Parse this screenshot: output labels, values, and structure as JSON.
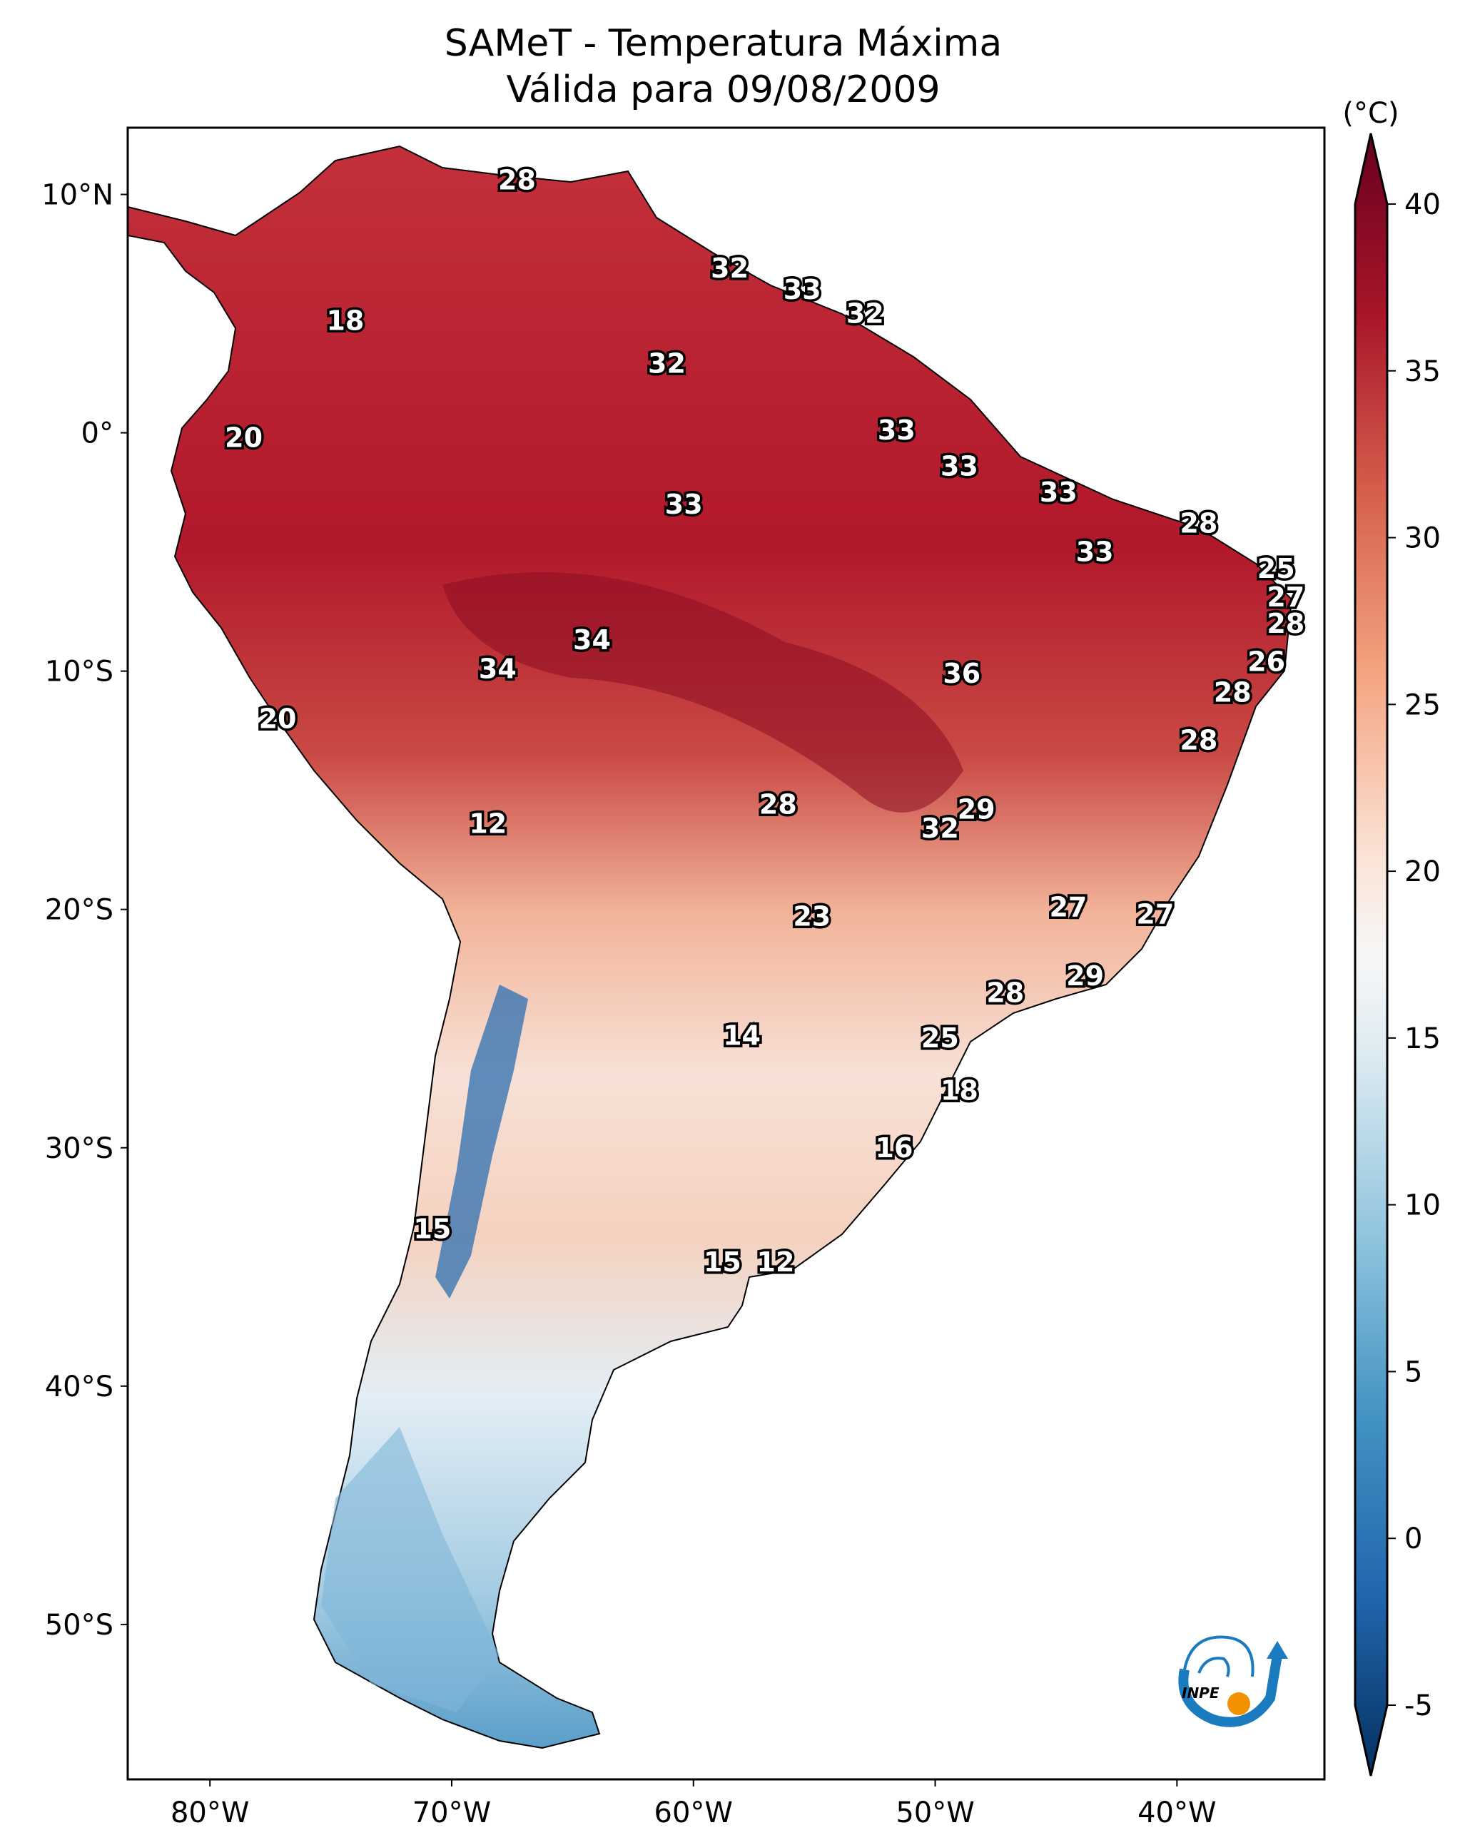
{
  "chart_data": {
    "type": "heatmap",
    "title": "SAMeT - Temperatura Máxima",
    "subtitle": "Válida para 09/08/2009",
    "xlabel": "",
    "ylabel": "",
    "x_ticks": [
      "80°W",
      "70°W",
      "60°W",
      "50°W",
      "40°W"
    ],
    "x_tick_values": [
      -80,
      -70,
      -60,
      -50,
      -40
    ],
    "y_ticks": [
      "10°N",
      "0°",
      "10°S",
      "20°S",
      "30°S",
      "40°S",
      "50°S"
    ],
    "y_tick_values": [
      10,
      0,
      -10,
      -20,
      -30,
      -40,
      -50
    ],
    "xlim": [
      -83.4,
      -33.9
    ],
    "ylim": [
      -56.5,
      12.8
    ],
    "colorbar": {
      "label": "(°C)",
      "ticks": [
        "40",
        "35",
        "30",
        "25",
        "20",
        "15",
        "10",
        "5",
        "0",
        "-5"
      ],
      "tick_values": [
        40,
        35,
        30,
        25,
        20,
        15,
        10,
        5,
        0,
        -5
      ],
      "range": [
        -5,
        40
      ],
      "extend": "both",
      "colormap": "RdBu_r"
    },
    "annotations": [
      {
        "value": "28",
        "lon": -67.3,
        "lat": 10.6
      },
      {
        "value": "32",
        "lon": -58.5,
        "lat": 6.9
      },
      {
        "value": "33",
        "lon": -55.5,
        "lat": 6.0
      },
      {
        "value": "32",
        "lon": -52.9,
        "lat": 5.0
      },
      {
        "value": "18",
        "lon": -74.4,
        "lat": 4.7
      },
      {
        "value": "32",
        "lon": -61.1,
        "lat": 2.9
      },
      {
        "value": "33",
        "lon": -51.6,
        "lat": 0.1
      },
      {
        "value": "20",
        "lon": -78.6,
        "lat": -0.2
      },
      {
        "value": "33",
        "lon": -49.0,
        "lat": -1.4
      },
      {
        "value": "33",
        "lon": -44.9,
        "lat": -2.5
      },
      {
        "value": "33",
        "lon": -60.4,
        "lat": -3.0
      },
      {
        "value": "28",
        "lon": -39.1,
        "lat": -3.8
      },
      {
        "value": "33",
        "lon": -43.4,
        "lat": -5.0
      },
      {
        "value": "25",
        "lon": -35.9,
        "lat": -5.7
      },
      {
        "value": "27",
        "lon": -35.5,
        "lat": -6.9
      },
      {
        "value": "28",
        "lon": -35.5,
        "lat": -8.0
      },
      {
        "value": "34",
        "lon": -64.2,
        "lat": -8.7
      },
      {
        "value": "26",
        "lon": -36.3,
        "lat": -9.6
      },
      {
        "value": "36",
        "lon": -48.9,
        "lat": -10.1
      },
      {
        "value": "34",
        "lon": -68.1,
        "lat": -9.9
      },
      {
        "value": "28",
        "lon": -37.7,
        "lat": -10.9
      },
      {
        "value": "20",
        "lon": -77.2,
        "lat": -12.0
      },
      {
        "value": "28",
        "lon": -39.1,
        "lat": -12.9
      },
      {
        "value": "28",
        "lon": -56.5,
        "lat": -15.6
      },
      {
        "value": "29",
        "lon": -48.3,
        "lat": -15.8
      },
      {
        "value": "12",
        "lon": -68.5,
        "lat": -16.4
      },
      {
        "value": "32",
        "lon": -49.8,
        "lat": -16.6
      },
      {
        "value": "23",
        "lon": -55.1,
        "lat": -20.3
      },
      {
        "value": "27",
        "lon": -44.5,
        "lat": -19.9
      },
      {
        "value": "27",
        "lon": -40.9,
        "lat": -20.2
      },
      {
        "value": "29",
        "lon": -43.8,
        "lat": -22.8
      },
      {
        "value": "28",
        "lon": -47.1,
        "lat": -23.5
      },
      {
        "value": "14",
        "lon": -58.0,
        "lat": -25.3
      },
      {
        "value": "25",
        "lon": -49.8,
        "lat": -25.4
      },
      {
        "value": "18",
        "lon": -49.0,
        "lat": -27.6
      },
      {
        "value": "16",
        "lon": -51.7,
        "lat": -30.0
      },
      {
        "value": "15",
        "lon": -70.8,
        "lat": -33.4
      },
      {
        "value": "15",
        "lon": -58.8,
        "lat": -34.8
      },
      {
        "value": "12",
        "lon": -56.6,
        "lat": -34.8
      }
    ]
  },
  "logo": {
    "text": "INPE",
    "colors": {
      "blue": "#1a7bbf",
      "orange": "#f39200"
    }
  }
}
